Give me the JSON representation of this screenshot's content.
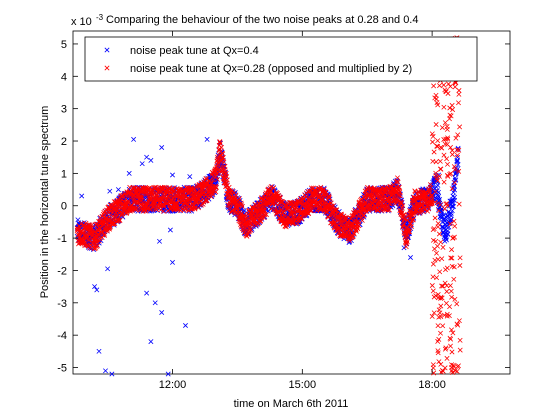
{
  "chart_data": {
    "type": "scatter",
    "title": "Comparing the behaviour of the two noise peaks at 0.28 and 0.4",
    "exponent_label": "x 10",
    "exponent_power": "-3",
    "xlabel": "time on March 6th 2011",
    "ylabel": "Position in the horizontal tune spectrum",
    "x_unit": "hours",
    "xlim": [
      9.7,
      19.8
    ],
    "ylim": [
      -5.2,
      5.4
    ],
    "x_ticks": [
      {
        "value": 12.0,
        "label": "12:00"
      },
      {
        "value": 15.0,
        "label": "15:00"
      },
      {
        "value": 18.0,
        "label": "18:00"
      }
    ],
    "y_ticks": [
      {
        "value": 5,
        "label": "5"
      },
      {
        "value": 4,
        "label": "4"
      },
      {
        "value": 3,
        "label": "3"
      },
      {
        "value": 2,
        "label": "2"
      },
      {
        "value": 1,
        "label": "1"
      },
      {
        "value": 0,
        "label": "0"
      },
      {
        "value": -1,
        "label": "-1"
      },
      {
        "value": -2,
        "label": "-2"
      },
      {
        "value": -3,
        "label": "-3"
      },
      {
        "value": -4,
        "label": "-4"
      },
      {
        "value": -5,
        "label": "-5"
      }
    ],
    "grid": false,
    "legend_position": "top",
    "series": [
      {
        "name": "noise peak tune at Qx=0.4",
        "color": "#0000ff",
        "marker": "x",
        "trend": [
          [
            9.8,
            -0.8
          ],
          [
            10.2,
            -1.0
          ],
          [
            10.5,
            -0.4
          ],
          [
            10.7,
            -0.2
          ],
          [
            11.0,
            0.2
          ],
          [
            11.5,
            0.2
          ],
          [
            12.0,
            0.2
          ],
          [
            12.5,
            0.2
          ],
          [
            12.8,
            0.5
          ],
          [
            13.0,
            0.8
          ],
          [
            13.1,
            1.7
          ],
          [
            13.3,
            0.2
          ],
          [
            13.5,
            0.0
          ],
          [
            13.7,
            -0.6
          ],
          [
            14.0,
            -0.2
          ],
          [
            14.3,
            0.3
          ],
          [
            14.6,
            -0.3
          ],
          [
            14.9,
            -0.2
          ],
          [
            15.2,
            0.2
          ],
          [
            15.5,
            0.2
          ],
          [
            15.8,
            -0.5
          ],
          [
            16.1,
            -0.8
          ],
          [
            16.5,
            0.2
          ],
          [
            17.0,
            0.2
          ],
          [
            17.2,
            0.5
          ],
          [
            17.4,
            -0.9
          ],
          [
            17.6,
            0.1
          ],
          [
            17.9,
            0.2
          ],
          [
            18.1,
            0.6
          ],
          [
            18.3,
            -0.9
          ],
          [
            18.5,
            0.3
          ],
          [
            18.6,
            1.5
          ]
        ],
        "outliers": [
          [
            9.9,
            0.3
          ],
          [
            10.2,
            -2.5
          ],
          [
            10.25,
            -2.6
          ],
          [
            10.3,
            -4.5
          ],
          [
            10.45,
            -5.1
          ],
          [
            10.5,
            -1.95
          ],
          [
            10.55,
            0.45
          ],
          [
            10.6,
            -5.2
          ],
          [
            10.75,
            0.5
          ],
          [
            11.0,
            1.0
          ],
          [
            11.1,
            2.05
          ],
          [
            11.3,
            1.3
          ],
          [
            11.4,
            1.5
          ],
          [
            11.5,
            1.4
          ],
          [
            11.7,
            -1.1
          ],
          [
            11.75,
            1.8
          ],
          [
            11.4,
            -2.7
          ],
          [
            11.5,
            -4.2
          ],
          [
            11.6,
            -3.0
          ],
          [
            11.75,
            -3.3
          ],
          [
            11.9,
            -5.2
          ],
          [
            11.95,
            -0.75
          ],
          [
            12.0,
            0.95
          ],
          [
            12.0,
            -1.75
          ],
          [
            12.3,
            -3.7
          ],
          [
            12.4,
            0.9
          ],
          [
            12.8,
            2.05
          ],
          [
            12.95,
            0.85
          ],
          [
            13.2,
            0.9
          ],
          [
            17.5,
            -1.6
          ],
          [
            17.35,
            -1.3
          ],
          [
            18.05,
            0.85
          ],
          [
            18.15,
            0.95
          ]
        ]
      },
      {
        "name": "noise peak tune at Qx=0.28 (opposed and multiplied by 2)",
        "color": "#ff0000",
        "marker": "x",
        "trend": [
          [
            9.8,
            -0.8
          ],
          [
            10.2,
            -1.0
          ],
          [
            10.5,
            -0.4
          ],
          [
            10.7,
            -0.2
          ],
          [
            11.0,
            0.2
          ],
          [
            11.5,
            0.2
          ],
          [
            12.0,
            0.2
          ],
          [
            12.5,
            0.2
          ],
          [
            12.8,
            0.5
          ],
          [
            13.0,
            0.8
          ],
          [
            13.1,
            1.7
          ],
          [
            13.3,
            0.2
          ],
          [
            13.5,
            0.0
          ],
          [
            13.7,
            -0.6
          ],
          [
            14.0,
            -0.2
          ],
          [
            14.3,
            0.3
          ],
          [
            14.6,
            -0.3
          ],
          [
            14.9,
            -0.2
          ],
          [
            15.2,
            0.2
          ],
          [
            15.5,
            0.2
          ],
          [
            15.8,
            -0.5
          ],
          [
            16.1,
            -0.8
          ],
          [
            16.5,
            0.2
          ],
          [
            17.0,
            0.2
          ],
          [
            17.2,
            0.5
          ],
          [
            17.4,
            -0.9
          ],
          [
            17.6,
            0.1
          ],
          [
            17.9,
            0.2
          ],
          [
            18.0,
            0.4
          ]
        ],
        "spread_region": {
          "x": [
            18.0,
            18.65
          ],
          "y": [
            -5.2,
            5.2
          ]
        },
        "outliers": [
          [
            18.2,
            5.1
          ],
          [
            18.4,
            5.15
          ],
          [
            18.5,
            5.1
          ],
          [
            18.1,
            3.3
          ],
          [
            18.3,
            4.1
          ],
          [
            18.55,
            3.8
          ],
          [
            18.2,
            -4.9
          ],
          [
            18.45,
            -5.0
          ],
          [
            18.35,
            1.9
          ]
        ]
      }
    ]
  }
}
